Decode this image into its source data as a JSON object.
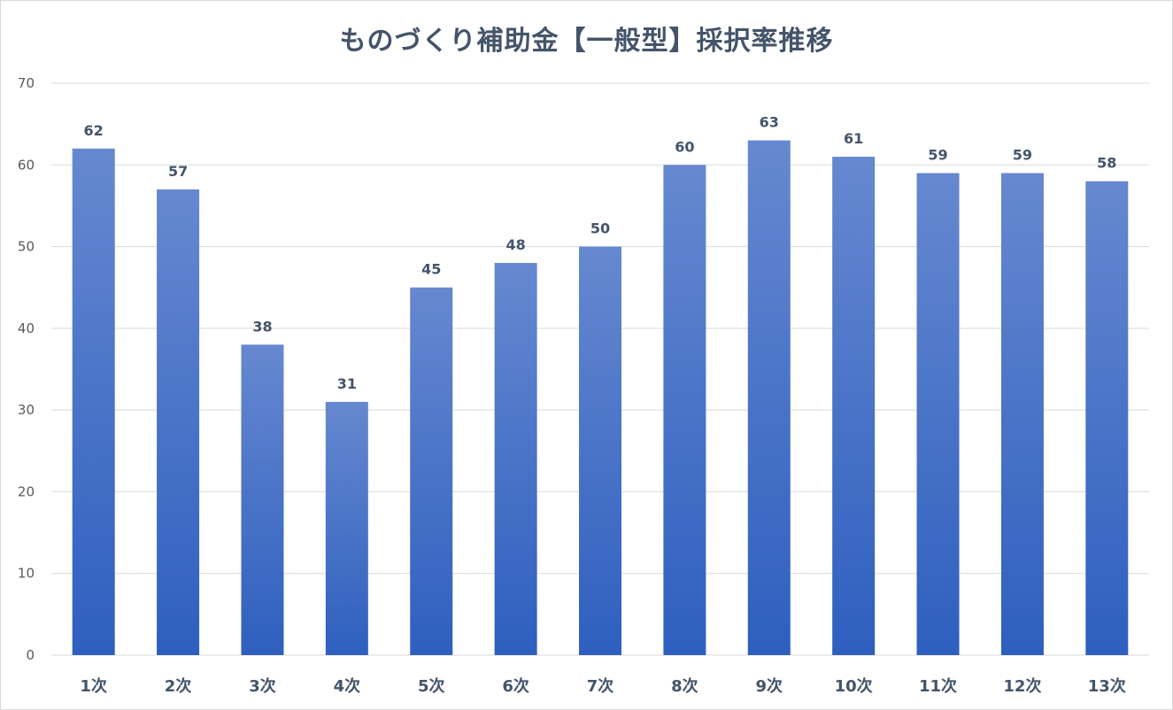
{
  "chart_data": {
    "type": "bar",
    "title": "ものづくり補助金【一般型】採択率推移",
    "categories": [
      "1次",
      "2次",
      "3次",
      "4次",
      "5次",
      "6次",
      "7次",
      "8次",
      "9次",
      "10次",
      "11次",
      "12次",
      "13次"
    ],
    "values": [
      62,
      57,
      38,
      31,
      45,
      48,
      50,
      60,
      63,
      61,
      59,
      59,
      58
    ],
    "ylim": [
      0,
      70
    ],
    "yticks": [
      0,
      10,
      20,
      30,
      40,
      50,
      60,
      70
    ],
    "grid": true,
    "legend": "none",
    "colors": {
      "bar_top": "#6688d0",
      "bar_bottom": "#2e5fbf",
      "grid": "#d9d9d9"
    }
  }
}
